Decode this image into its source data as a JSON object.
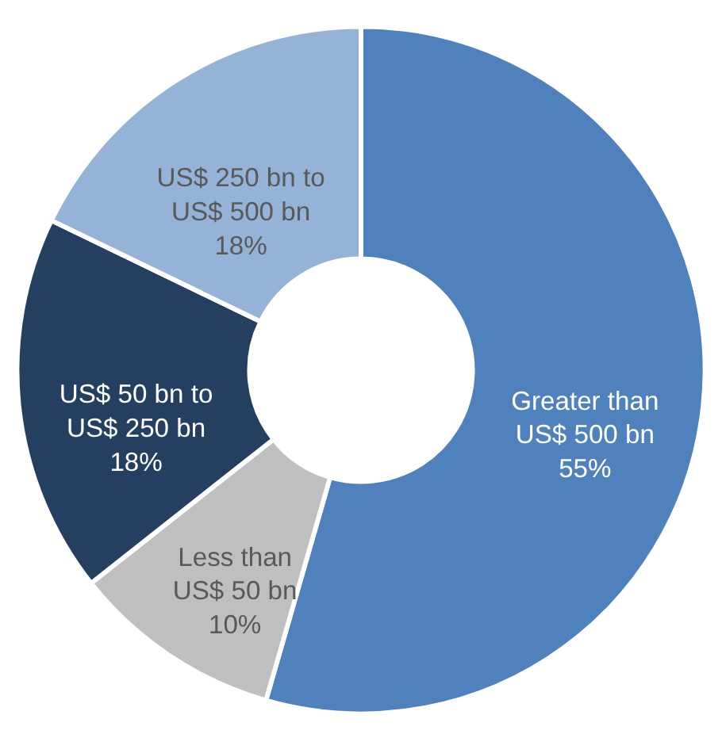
{
  "chart_data": {
    "type": "donut",
    "categories": [
      "Greater than US$ 500 bn",
      "Less than US$ 50 bn",
      "US$ 50 bn to US$ 250 bn",
      "US$ 250 bn to US$ 500 bn"
    ],
    "values": [
      55,
      10,
      18,
      18
    ],
    "colors": [
      "#4f81bd",
      "#bfbfbf",
      "#243f60",
      "#95b3d7"
    ],
    "value_labels": [
      "55%",
      "10%",
      "18%",
      "18%"
    ],
    "legend": false
  }
}
